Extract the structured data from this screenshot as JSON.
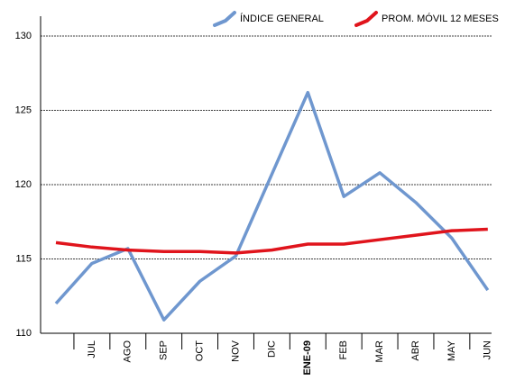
{
  "chart_data": {
    "type": "line",
    "categories": [
      null,
      "JUL",
      "AGO",
      "SEP",
      "OCT",
      "NOV",
      "DIC",
      "ENE-09",
      "FEB",
      "MAR",
      "ABR",
      "MAY",
      "JUN"
    ],
    "series": [
      {
        "name": "ÍNDICE GENERAL",
        "color": "#6f97cf",
        "values": [
          112.0,
          114.7,
          115.7,
          110.9,
          113.5,
          115.2,
          120.7,
          126.2,
          119.2,
          120.8,
          118.8,
          116.4,
          112.9
        ]
      },
      {
        "name": "PROM. MÓVIL 12 MESES",
        "color": "#e0141c",
        "values": [
          116.1,
          115.8,
          115.6,
          115.5,
          115.5,
          115.4,
          115.6,
          116.0,
          116.0,
          116.3,
          116.6,
          116.9,
          117.0
        ]
      }
    ],
    "ylim": [
      110,
      130
    ],
    "yticks": [
      110,
      115,
      120,
      125,
      130
    ],
    "grid": true
  }
}
